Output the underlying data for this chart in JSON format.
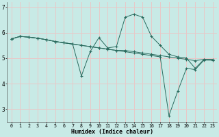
{
  "xlabel": "Humidex (Indice chaleur)",
  "background_color": "#c8eae6",
  "grid_color": "#e8c8c8",
  "line_color": "#2a6b5e",
  "x_ticks": [
    0,
    1,
    2,
    3,
    4,
    5,
    6,
    7,
    8,
    9,
    10,
    11,
    12,
    13,
    14,
    15,
    16,
    17,
    18,
    19,
    20,
    21,
    22,
    23
  ],
  "y_ticks": [
    3,
    4,
    5,
    6,
    7
  ],
  "ylim": [
    2.5,
    7.2
  ],
  "xlim": [
    -0.5,
    23.5
  ],
  "line1_x": [
    0,
    1,
    2,
    3,
    4,
    5,
    6,
    7,
    8,
    9,
    10,
    11,
    12,
    13,
    14,
    15,
    16,
    17,
    18,
    19,
    20,
    21,
    22,
    23
  ],
  "line1_y": [
    5.75,
    5.85,
    5.82,
    5.78,
    5.72,
    5.65,
    5.6,
    5.55,
    4.3,
    5.25,
    5.8,
    5.4,
    5.45,
    6.6,
    6.72,
    6.6,
    5.85,
    5.5,
    5.15,
    5.05,
    5.0,
    4.6,
    4.95,
    4.95
  ],
  "line2_x": [
    0,
    1,
    2,
    3,
    4,
    5,
    6,
    7,
    8,
    9,
    10,
    11,
    12,
    13,
    14,
    15,
    16,
    17,
    18,
    19,
    20,
    21,
    22,
    23
  ],
  "line2_y": [
    5.75,
    5.85,
    5.82,
    5.78,
    5.72,
    5.65,
    5.6,
    5.55,
    5.5,
    5.45,
    5.4,
    5.35,
    5.3,
    5.3,
    5.25,
    5.2,
    5.15,
    5.1,
    5.05,
    5.0,
    4.95,
    4.9,
    4.95,
    4.92
  ],
  "line3_x": [
    0,
    1,
    2,
    3,
    4,
    5,
    6,
    7,
    8,
    9,
    10,
    11,
    12,
    13,
    14,
    15,
    16,
    17,
    18,
    19,
    20,
    21,
    22,
    23
  ],
  "line3_y": [
    5.75,
    5.85,
    5.82,
    5.78,
    5.72,
    5.65,
    5.6,
    5.55,
    5.5,
    5.45,
    5.4,
    5.35,
    5.3,
    5.25,
    5.2,
    5.15,
    5.1,
    5.05,
    2.75,
    3.7,
    4.6,
    4.55,
    4.92,
    4.92
  ]
}
